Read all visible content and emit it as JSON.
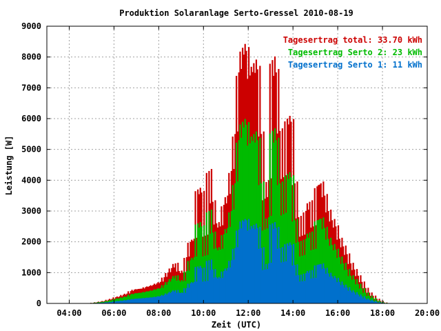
{
  "chart_data": {
    "type": "bar",
    "title": "Produktion Solaranlage Serto-Gressel 2010-08-19",
    "xlabel": "Zeit (UTC)",
    "ylabel": "Leistung [W]",
    "xlim_hours": [
      3.0,
      20.0
    ],
    "ylim": [
      0,
      9000
    ],
    "x_ticks": [
      "04:00",
      "06:00",
      "08:00",
      "10:00",
      "12:00",
      "14:00",
      "16:00",
      "18:00",
      "20:00"
    ],
    "y_ticks": [
      "0",
      "1000",
      "2000",
      "3000",
      "4000",
      "5000",
      "6000",
      "7000",
      "8000",
      "9000"
    ],
    "grid": true,
    "legend_position": "top-right",
    "bar_colors": {
      "total": "#cc0000",
      "serto2": "#00bb00",
      "serto1": "#0070cc"
    },
    "legend": [
      {
        "text": "Tagesertrag total: 33.70 kWh",
        "color": "#cc0000"
      },
      {
        "text": "Tagesertrag Serto 2: 23 kWh",
        "color": "#00bb00"
      },
      {
        "text": "Tagesertrag Serto 1: 11 kWh",
        "color": "#0070cc"
      }
    ],
    "series": [
      {
        "name": "total",
        "color": "#cc0000",
        "x": [
          "05:05",
          "05:15",
          "05:25",
          "05:35",
          "05:45",
          "05:55",
          "06:05",
          "06:15",
          "06:25",
          "06:35",
          "06:45",
          "06:55",
          "07:05",
          "07:15",
          "07:25",
          "07:35",
          "07:45",
          "07:55",
          "08:05",
          "08:15",
          "08:25",
          "08:35",
          "08:45",
          "08:55",
          "09:05",
          "09:15",
          "09:25",
          "09:35",
          "09:45",
          "09:55",
          "10:05",
          "10:15",
          "10:25",
          "10:35",
          "10:45",
          "10:55",
          "11:05",
          "11:15",
          "11:25",
          "11:35",
          "11:45",
          "11:55",
          "12:05",
          "12:15",
          "12:25",
          "12:35",
          "12:45",
          "12:55",
          "13:05",
          "13:15",
          "13:25",
          "13:35",
          "13:45",
          "13:55",
          "14:05",
          "14:15",
          "14:25",
          "14:35",
          "14:45",
          "14:55",
          "15:05",
          "15:15",
          "15:25",
          "15:35",
          "15:45",
          "15:55",
          "16:05",
          "16:15",
          "16:25",
          "16:35",
          "16:45",
          "16:55",
          "17:05",
          "17:15",
          "17:25",
          "17:35",
          "17:45",
          "17:55",
          "18:05"
        ],
        "values": [
          20,
          40,
          60,
          80,
          120,
          150,
          200,
          230,
          280,
          320,
          400,
          450,
          470,
          480,
          530,
          560,
          600,
          650,
          700,
          850,
          1000,
          1150,
          1300,
          1050,
          1000,
          1500,
          2000,
          2100,
          3700,
          3600,
          2200,
          4300,
          3300,
          2600,
          2500,
          3200,
          3500,
          4300,
          5500,
          7500,
          8300,
          8200,
          7400,
          7800,
          7600,
          5500,
          3400,
          4000,
          7900,
          7500,
          5600,
          4100,
          6000,
          5900,
          3900,
          2800,
          2200,
          3000,
          3300,
          2500,
          3800,
          3900,
          3500,
          3000,
          2700,
          2500,
          2100,
          1850,
          1600,
          1300,
          1100,
          900,
          700,
          500,
          350,
          250,
          150,
          80,
          30
        ]
      },
      {
        "name": "serto2",
        "color": "#00bb00",
        "x": [
          "05:05",
          "05:15",
          "05:25",
          "05:35",
          "05:45",
          "05:55",
          "06:05",
          "06:15",
          "06:25",
          "06:35",
          "06:45",
          "06:55",
          "07:05",
          "07:15",
          "07:25",
          "07:35",
          "07:45",
          "07:55",
          "08:05",
          "08:15",
          "08:25",
          "08:35",
          "08:45",
          "08:55",
          "09:05",
          "09:15",
          "09:25",
          "09:35",
          "09:45",
          "09:55",
          "10:05",
          "10:15",
          "10:25",
          "10:35",
          "10:45",
          "10:55",
          "11:05",
          "11:15",
          "11:25",
          "11:35",
          "11:45",
          "11:55",
          "12:05",
          "12:15",
          "12:25",
          "12:35",
          "12:45",
          "12:55",
          "13:05",
          "13:15",
          "13:25",
          "13:35",
          "13:45",
          "13:55",
          "14:05",
          "14:15",
          "14:25",
          "14:35",
          "14:45",
          "14:55",
          "15:05",
          "15:15",
          "15:25",
          "15:35",
          "15:45",
          "15:55",
          "16:05",
          "16:15",
          "16:25",
          "16:35",
          "16:45",
          "16:55",
          "17:05",
          "17:15",
          "17:25",
          "17:35",
          "17:45",
          "17:55",
          "18:05"
        ],
        "values": [
          15,
          30,
          45,
          60,
          90,
          110,
          150,
          170,
          200,
          230,
          290,
          320,
          340,
          350,
          380,
          400,
          430,
          470,
          500,
          600,
          700,
          800,
          900,
          750,
          720,
          1050,
          1400,
          1500,
          2600,
          2500,
          1550,
          3000,
          2300,
          1800,
          1750,
          2250,
          2450,
          3000,
          3900,
          5300,
          5900,
          5800,
          5200,
          5500,
          5300,
          3900,
          2400,
          2800,
          5600,
          5300,
          3900,
          2900,
          4200,
          4100,
          2700,
          2000,
          1550,
          2100,
          2300,
          1750,
          2700,
          2750,
          2450,
          2100,
          1900,
          1750,
          1500,
          1300,
          1100,
          900,
          780,
          630,
          490,
          350,
          250,
          180,
          100,
          55,
          20
        ]
      },
      {
        "name": "serto1",
        "color": "#0070cc",
        "x": [
          "05:05",
          "05:15",
          "05:25",
          "05:35",
          "05:45",
          "05:55",
          "06:05",
          "06:15",
          "06:25",
          "06:35",
          "06:45",
          "06:55",
          "07:05",
          "07:15",
          "07:25",
          "07:35",
          "07:45",
          "07:55",
          "08:05",
          "08:15",
          "08:25",
          "08:35",
          "08:45",
          "08:55",
          "09:05",
          "09:15",
          "09:25",
          "09:35",
          "09:45",
          "09:55",
          "10:05",
          "10:15",
          "10:25",
          "10:35",
          "10:45",
          "10:55",
          "11:05",
          "11:15",
          "11:25",
          "11:35",
          "11:45",
          "11:55",
          "12:05",
          "12:15",
          "12:25",
          "12:35",
          "12:45",
          "12:55",
          "13:05",
          "13:15",
          "13:25",
          "13:35",
          "13:45",
          "13:55",
          "14:05",
          "14:15",
          "14:25",
          "14:35",
          "14:45",
          "14:55",
          "15:05",
          "15:15",
          "15:25",
          "15:35",
          "15:45",
          "15:55",
          "16:05",
          "16:15",
          "16:25",
          "16:35",
          "16:45",
          "16:55",
          "17:05",
          "17:15",
          "17:25",
          "17:35",
          "17:45",
          "17:55",
          "18:05"
        ],
        "values": [
          8,
          15,
          20,
          30,
          40,
          50,
          70,
          80,
          95,
          110,
          130,
          150,
          160,
          165,
          180,
          190,
          200,
          220,
          240,
          280,
          330,
          380,
          430,
          350,
          340,
          500,
          650,
          700,
          1200,
          1150,
          720,
          1400,
          1100,
          850,
          820,
          1050,
          1150,
          1400,
          1800,
          2400,
          2700,
          2700,
          2400,
          2550,
          2450,
          1800,
          1100,
          1300,
          2600,
          2450,
          1800,
          1350,
          1950,
          1900,
          1250,
          920,
          720,
          980,
          1070,
          820,
          1250,
          1280,
          1140,
          980,
          880,
          820,
          700,
          600,
          520,
          420,
          360,
          290,
          230,
          160,
          120,
          80,
          50,
          25,
          10
        ]
      }
    ]
  }
}
